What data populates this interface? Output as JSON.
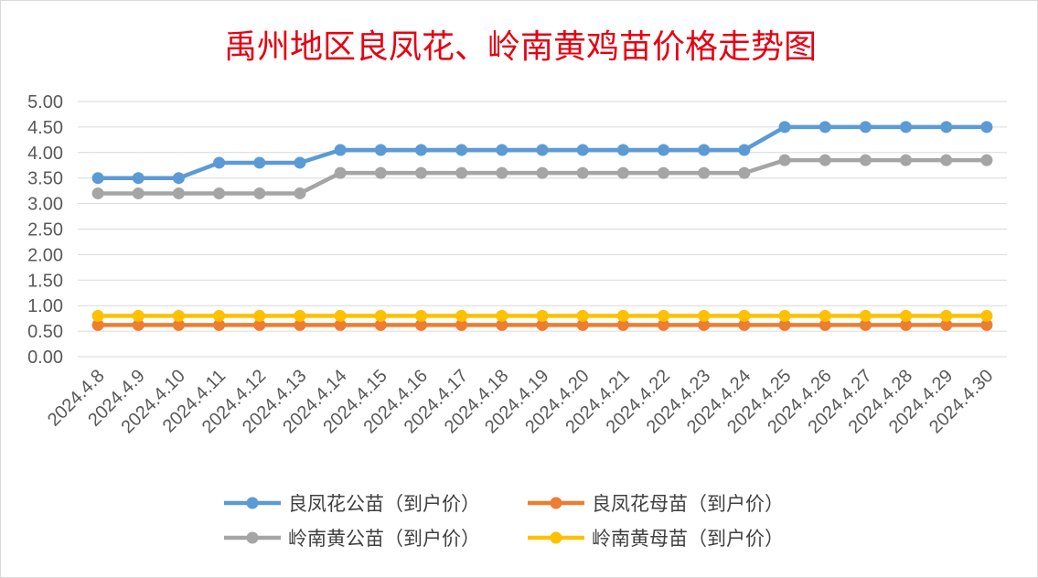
{
  "chart_data": {
    "type": "line",
    "title": "禹州地区良凤花、岭南黄鸡苗价格走势图",
    "xlabel": "",
    "ylabel": "",
    "ylim": [
      0,
      5
    ],
    "ytick_step": 0.5,
    "ytick_labels": [
      "0.00",
      "0.50",
      "1.00",
      "1.50",
      "2.00",
      "2.50",
      "3.00",
      "3.50",
      "4.00",
      "4.50",
      "5.00"
    ],
    "grid": true,
    "legend_position": "bottom",
    "categories": [
      "2024.4.8",
      "2024.4.9",
      "2024.4.10",
      "2024.4.11",
      "2024.4.12",
      "2024.4.13",
      "2024.4.14",
      "2024.4.15",
      "2024.4.16",
      "2024.4.17",
      "2024.4.18",
      "2024.4.19",
      "2024.4.20",
      "2024.4.21",
      "2024.4.22",
      "2024.4.23",
      "2024.4.24",
      "2024.4.25",
      "2024.4.26",
      "2024.4.27",
      "2024.4.28",
      "2024.4.29",
      "2024.4.30"
    ],
    "series": [
      {
        "name": "良凤花公苗（到户价）",
        "color": "#5b9bd5",
        "values": [
          3.5,
          3.5,
          3.5,
          3.8,
          3.8,
          3.8,
          4.05,
          4.05,
          4.05,
          4.05,
          4.05,
          4.05,
          4.05,
          4.05,
          4.05,
          4.05,
          4.05,
          4.5,
          4.5,
          4.5,
          4.5,
          4.5,
          4.5
        ]
      },
      {
        "name": "良凤花母苗（到户价）",
        "color": "#ed7d31",
        "values": [
          0.62,
          0.62,
          0.62,
          0.62,
          0.62,
          0.62,
          0.62,
          0.62,
          0.62,
          0.62,
          0.62,
          0.62,
          0.62,
          0.62,
          0.62,
          0.62,
          0.62,
          0.62,
          0.62,
          0.62,
          0.62,
          0.62,
          0.62
        ]
      },
      {
        "name": "岭南黄公苗（到户价）",
        "color": "#a5a5a5",
        "values": [
          3.2,
          3.2,
          3.2,
          3.2,
          3.2,
          3.2,
          3.6,
          3.6,
          3.6,
          3.6,
          3.6,
          3.6,
          3.6,
          3.6,
          3.6,
          3.6,
          3.6,
          3.85,
          3.85,
          3.85,
          3.85,
          3.85,
          3.85
        ]
      },
      {
        "name": "岭南黄母苗（到户价）",
        "color": "#ffc000",
        "values": [
          0.8,
          0.8,
          0.8,
          0.8,
          0.8,
          0.8,
          0.8,
          0.8,
          0.8,
          0.8,
          0.8,
          0.8,
          0.8,
          0.8,
          0.8,
          0.8,
          0.8,
          0.8,
          0.8,
          0.8,
          0.8,
          0.8,
          0.8
        ]
      }
    ]
  }
}
